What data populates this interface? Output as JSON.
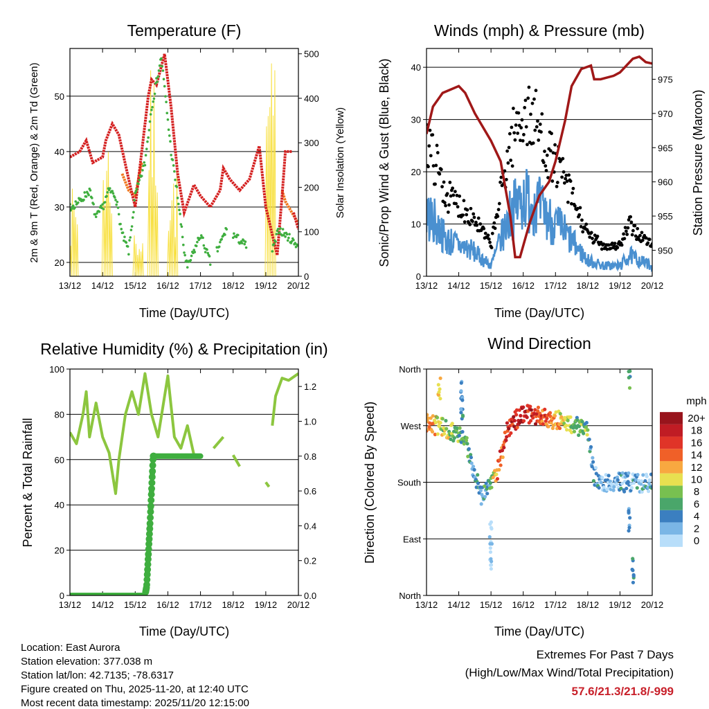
{
  "colors": {
    "temp": "#d42020",
    "temp9m": "#f07820",
    "dew": "#3fae3f",
    "solar": "#f8e040",
    "gust": "#000000",
    "wind": "#4a90d0",
    "pressure": "#a01818",
    "rh": "#8cc63f",
    "precip": "#3fae3f",
    "extremes": "#c8202a"
  },
  "info": {
    "location": "Location: East Aurora",
    "elevation": "Station elevation: 377.038 m",
    "latlon": "Station lat/lon: 42.7135; -78.6317",
    "created": "Figure created on Thu, 2025-11-20, at 12:40 UTC",
    "recent": "Most recent data timestamp: 2025/11/20 12:15:00",
    "extremes_title": "Extremes For Past 7 Days",
    "extremes_sub": "(High/Low/Max Wind/Total Precipitation)",
    "extremes_value": "57.6/21.3/21.8/-999"
  },
  "chart_data": [
    {
      "type": "line",
      "title": "Temperature (F)",
      "xlabel": "Time (Day/UTC)",
      "ylabel": "2m & 9m T (Red, Orange) & 2m Td (Green)",
      "ylabel_right": "Solar Insolation (Yellow)",
      "xticks": [
        "13/12",
        "14/12",
        "15/12",
        "16/12",
        "17/12",
        "18/12",
        "19/12",
        "20/12"
      ],
      "xlim": [
        0,
        7
      ],
      "ylim": [
        17.5,
        58.6
      ],
      "yticks": [
        20,
        30,
        40,
        50
      ],
      "ylim_right": [
        0,
        512
      ],
      "yticks_right": [
        0,
        100,
        200,
        300,
        400,
        500
      ],
      "series": [
        {
          "name": "9m T",
          "segments": [
            [
              [
                1.6,
                36
              ],
              [
                1.8,
                33
              ],
              [
                2.0,
                32
              ],
              [
                2.2,
                38
              ]
            ],
            [
              [
                6.5,
                33
              ],
              [
                6.6,
                31
              ],
              [
                6.8,
                29
              ],
              [
                7,
                27
              ]
            ]
          ]
        },
        {
          "name": "2m T",
          "segments": [
            [
              [
                0,
                39
              ],
              [
                0.3,
                40
              ],
              [
                0.5,
                42
              ],
              [
                0.7,
                38
              ],
              [
                1,
                39
              ],
              [
                1.1,
                42
              ],
              [
                1.3,
                45
              ],
              [
                1.5,
                43
              ],
              [
                1.8,
                35
              ],
              [
                2,
                30
              ],
              [
                2.2,
                40
              ],
              [
                2.4,
                50
              ],
              [
                2.5,
                53
              ],
              [
                2.65,
                52
              ],
              [
                2.9,
                57.6
              ],
              [
                3.1,
                48
              ],
              [
                3.3,
                36
              ],
              [
                3.5,
                29
              ],
              [
                3.8,
                34
              ],
              [
                4,
                32
              ],
              [
                4.3,
                30
              ],
              [
                4.6,
                33
              ],
              [
                4.7,
                37
              ],
              [
                4.9,
                35
              ],
              [
                5.2,
                33
              ],
              [
                5.5,
                35
              ],
              [
                5.8,
                41
              ],
              [
                6,
                30
              ],
              [
                6.2,
                25
              ],
              [
                6.35,
                21.3
              ],
              [
                6.5,
                32
              ],
              [
                6.6,
                40
              ],
              [
                6.8,
                40
              ]
            ],
            [
              [
                6.85,
                29
              ],
              [
                7,
                26
              ]
            ]
          ]
        },
        {
          "name": "2m Td",
          "segments": [
            [
              [
                0,
                30
              ],
              [
                0.3,
                31
              ],
              [
                0.6,
                33
              ],
              [
                0.8,
                28
              ],
              [
                1,
                30
              ],
              [
                1.2,
                33
              ],
              [
                1.4,
                32
              ],
              [
                1.6,
                25
              ],
              [
                1.8,
                22
              ],
              [
                2,
                32
              ],
              [
                2.3,
                38
              ],
              [
                2.5,
                48
              ],
              [
                2.8,
                57
              ],
              [
                3.1,
                40
              ],
              [
                3.3,
                32
              ],
              [
                3.5,
                22
              ],
              [
                3.6,
                19
              ],
              [
                3.8,
                22
              ],
              [
                4,
                25
              ],
              [
                4.3,
                20
              ]
            ],
            [
              [
                4.5,
                22
              ],
              [
                4.8,
                26
              ]
            ],
            [
              [
                5.0,
                25
              ],
              [
                5.4,
                23
              ]
            ],
            [
              [
                6.2,
                22
              ],
              [
                6.4,
                26
              ],
              [
                6.6,
                25
              ],
              [
                6.8,
                24
              ],
              [
                7,
                23
              ]
            ]
          ]
        },
        {
          "name": "Solar",
          "spikes": [
            [
              0.1,
              200
            ],
            [
              1.15,
              345
            ],
            [
              2.1,
              110
            ],
            [
              2.55,
              470
            ],
            [
              3.15,
              250
            ],
            [
              6.15,
              490
            ]
          ]
        }
      ]
    },
    {
      "type": "scatter",
      "title": "Winds (mph) & Pressure (mb)",
      "xlabel": "Time (Day/UTC)",
      "ylabel": "Sonic/Prop Wind & Gust (Blue, Black)",
      "ylabel_right": "Station Pressure (Maroon)",
      "xticks": [
        "13/12",
        "14/12",
        "15/12",
        "16/12",
        "17/12",
        "18/12",
        "19/12",
        "20/12"
      ],
      "xlim": [
        0,
        7
      ],
      "ylim": [
        0,
        43.6
      ],
      "yticks": [
        0,
        10,
        20,
        30,
        40
      ],
      "ylim_right": [
        946.2,
        979.5
      ],
      "yticks_right": [
        950,
        955,
        960,
        965,
        970,
        975
      ],
      "wind_mean": [
        [
          0,
          12
        ],
        [
          0.3,
          10
        ],
        [
          0.6,
          7
        ],
        [
          1,
          6
        ],
        [
          1.4,
          5
        ],
        [
          1.8,
          3
        ],
        [
          2,
          2
        ],
        [
          2.3,
          7
        ],
        [
          2.6,
          12
        ],
        [
          3,
          15
        ],
        [
          3.4,
          14
        ],
        [
          3.8,
          11
        ],
        [
          4.2,
          9
        ],
        [
          4.6,
          6
        ],
        [
          5,
          3
        ],
        [
          5.5,
          2
        ],
        [
          6,
          2
        ],
        [
          6.3,
          4
        ],
        [
          6.6,
          3
        ],
        [
          7,
          2
        ]
      ],
      "pressure": [
        [
          0,
          967
        ],
        [
          0.2,
          971
        ],
        [
          0.5,
          973
        ],
        [
          1,
          974
        ],
        [
          1.2,
          973
        ],
        [
          1.5,
          970
        ],
        [
          2,
          966
        ],
        [
          2.3,
          963
        ],
        [
          2.6,
          955
        ],
        [
          2.75,
          949
        ],
        [
          2.9,
          949
        ],
        [
          3.2,
          954
        ],
        [
          3.5,
          958
        ],
        [
          3.8,
          960
        ],
        [
          4,
          963
        ],
        [
          4.3,
          969
        ],
        [
          4.5,
          974
        ],
        [
          4.8,
          976.5
        ],
        [
          5.1,
          977
        ],
        [
          5.2,
          975
        ],
        [
          5.4,
          975
        ],
        [
          5.8,
          975.5
        ],
        [
          6,
          976
        ],
        [
          6.4,
          978
        ],
        [
          6.6,
          978.3
        ],
        [
          6.8,
          977.5
        ],
        [
          7,
          977.3
        ]
      ]
    },
    {
      "type": "line",
      "title": "Relative Humidity (%) & Precipitation (in)",
      "xlabel": "Time (Day/UTC)",
      "ylabel": "Percent & Total Rainfall",
      "xticks": [
        "13/12",
        "14/12",
        "15/12",
        "16/12",
        "17/12",
        "18/12",
        "19/12",
        "20/12"
      ],
      "xlim": [
        0,
        7
      ],
      "ylim": [
        0,
        100
      ],
      "yticks": [
        0,
        20,
        40,
        60,
        80,
        100
      ],
      "ylim_right": [
        0,
        1.3
      ],
      "yticks_right": [
        "0.0",
        "0.2",
        "0.4",
        "0.6",
        "0.8",
        "1.0",
        "1.2"
      ],
      "rh": [
        [
          [
            0,
            72
          ],
          [
            0.2,
            67
          ],
          [
            0.4,
            80
          ],
          [
            0.5,
            90
          ],
          [
            0.6,
            70
          ],
          [
            0.8,
            85
          ],
          [
            1,
            70
          ],
          [
            1.2,
            63
          ],
          [
            1.4,
            45
          ],
          [
            1.5,
            60
          ],
          [
            1.7,
            80
          ],
          [
            1.9,
            90
          ],
          [
            2.1,
            80
          ],
          [
            2.3,
            98
          ],
          [
            2.5,
            80
          ],
          [
            2.7,
            70
          ],
          [
            3,
            97
          ],
          [
            3.2,
            70
          ],
          [
            3.4,
            65
          ],
          [
            3.6,
            75
          ],
          [
            3.8,
            62
          ],
          [
            4,
            62
          ]
        ],
        [
          [
            4.4,
            65
          ],
          [
            4.7,
            70
          ]
        ],
        [
          [
            5.0,
            62
          ],
          [
            5.2,
            57
          ]
        ],
        [
          [
            6.0,
            50
          ],
          [
            6.1,
            48
          ]
        ],
        [
          [
            6.2,
            75
          ],
          [
            6.3,
            88
          ],
          [
            6.5,
            96
          ],
          [
            6.7,
            95
          ],
          [
            7,
            98
          ]
        ]
      ],
      "precip": [
        [
          0,
          0
        ],
        [
          2.3,
          0
        ],
        [
          2.35,
          0.05
        ],
        [
          2.45,
          0.4
        ],
        [
          2.55,
          0.8
        ],
        [
          4.0,
          0.8
        ]
      ]
    },
    {
      "type": "scatter",
      "title": "Wind Direction",
      "xlabel": "Time (Day/UTC)",
      "ylabel": "Direction (Colored By Speed)",
      "xticks": [
        "13/12",
        "14/12",
        "15/12",
        "16/12",
        "17/12",
        "18/12",
        "19/12",
        "20/12"
      ],
      "xlim": [
        0,
        7
      ],
      "ylim": [
        0,
        360
      ],
      "yticks": [
        "North",
        "East",
        "South",
        "West",
        "North"
      ],
      "legend_title": "mph",
      "legend_labels": [
        "0",
        "2",
        "4",
        "6",
        "8",
        "10",
        "12",
        "14",
        "16",
        "18",
        "20+"
      ],
      "legend_colors": [
        "#b8defa",
        "#7ab6e6",
        "#3b7fc0",
        "#4aa66a",
        "#78c050",
        "#e8e050",
        "#f8a840",
        "#f06028",
        "#e03428",
        "#c01c24",
        "#98141c"
      ],
      "track": [
        [
          0,
          275,
          14
        ],
        [
          0.4,
          268,
          10
        ],
        [
          0.8,
          262,
          8
        ],
        [
          1.2,
          245,
          6
        ],
        [
          1.5,
          195,
          4
        ],
        [
          1.7,
          160,
          4
        ],
        [
          2,
          180,
          6
        ],
        [
          2.2,
          200,
          14
        ],
        [
          2.5,
          262,
          16
        ],
        [
          3,
          292,
          18
        ],
        [
          3.5,
          285,
          16
        ],
        [
          4,
          280,
          12
        ],
        [
          4.5,
          272,
          8
        ],
        [
          5,
          262,
          6
        ],
        [
          5.2,
          190,
          4
        ],
        [
          5.5,
          180,
          2
        ],
        [
          6,
          180,
          2
        ],
        [
          6.5,
          180,
          3
        ],
        [
          7,
          178,
          3
        ]
      ],
      "extra": [
        [
          1.1,
          300,
          4
        ],
        [
          1.1,
          330,
          3
        ],
        [
          2,
          100,
          1
        ],
        [
          2,
          60,
          1
        ],
        [
          6.3,
          345,
          6
        ],
        [
          6.3,
          120,
          3
        ],
        [
          6.4,
          40,
          4
        ],
        [
          0.4,
          330,
          10
        ]
      ]
    }
  ]
}
